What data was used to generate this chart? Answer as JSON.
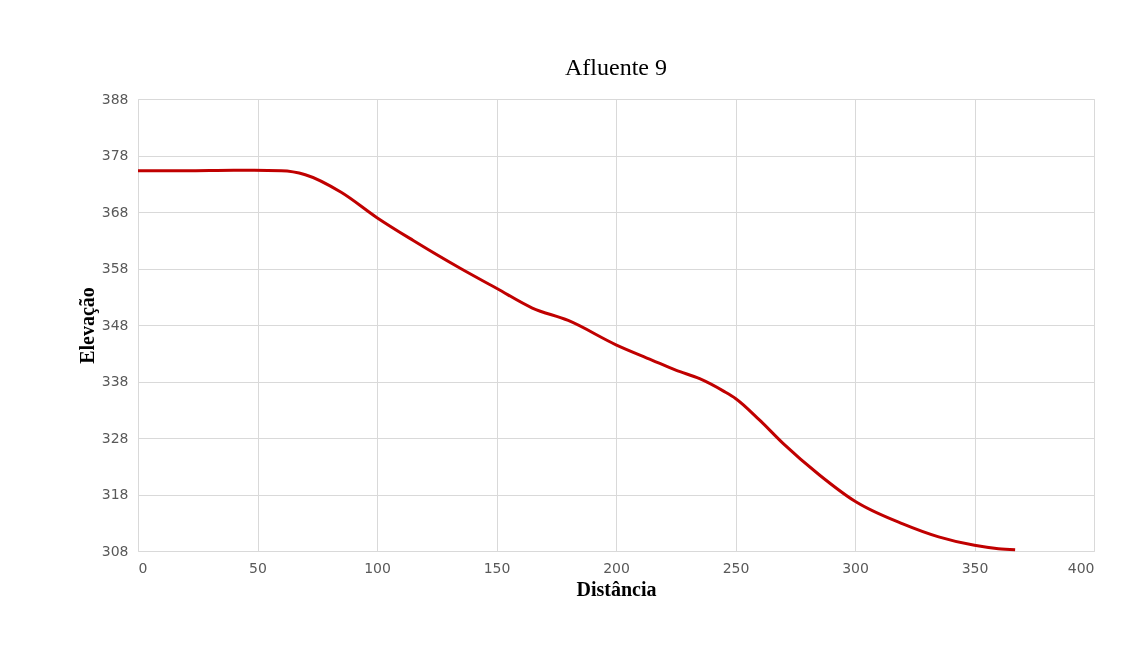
{
  "chart_data": {
    "type": "line",
    "title": "Afluente 9",
    "xlabel": "Distância",
    "ylabel": "Elevação",
    "x": [
      0,
      20,
      40,
      60,
      70,
      85,
      100,
      115,
      135,
      150,
      165,
      180,
      200,
      215,
      225,
      235,
      245,
      250,
      260,
      270,
      285,
      300,
      320,
      335,
      350,
      360,
      367
    ],
    "series": [
      {
        "color": "#c00000",
        "values": [
          375.3,
          375.3,
          375.4,
          375.3,
          374.6,
          371.5,
          367,
          363,
          358,
          354.5,
          351,
          348.8,
          344.5,
          341.8,
          340,
          338.5,
          336.3,
          335,
          331.2,
          327,
          321.5,
          316.8,
          312.8,
          310.5,
          309,
          308.4,
          308.2
        ]
      }
    ],
    "xlim": [
      0,
      400
    ],
    "xticks": [
      0,
      50,
      100,
      150,
      200,
      250,
      300,
      350,
      400
    ],
    "ylim": [
      308,
      388
    ],
    "yticks": [
      308,
      318,
      328,
      338,
      348,
      358,
      368,
      378,
      388
    ],
    "grid": true,
    "marker": "none",
    "line_style": "solid"
  }
}
